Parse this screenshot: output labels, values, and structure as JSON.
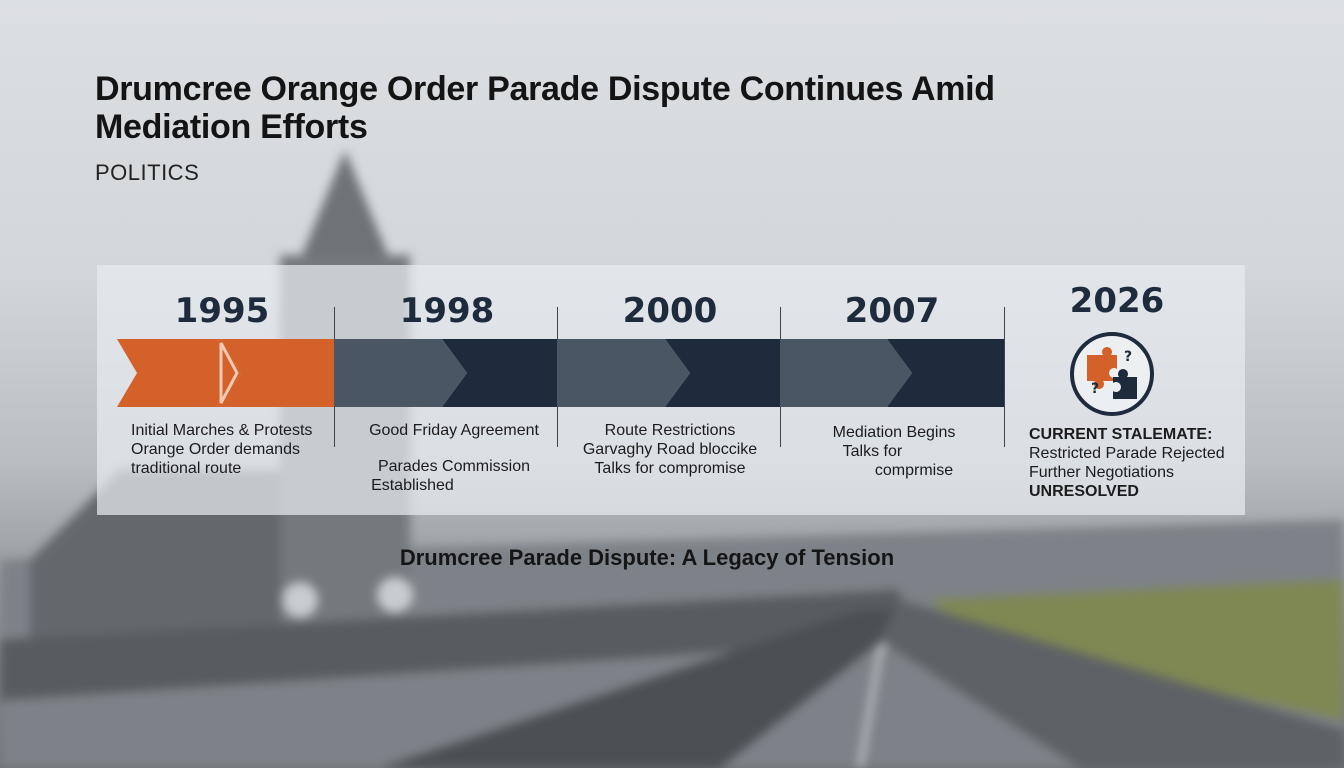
{
  "headline": "Drumcree Orange Order Parade Dispute Continues Amid Mediation Efforts",
  "category": "POLITICS",
  "timeline": [
    {
      "year": "1995",
      "lines": [
        "Initial Marches & Protests",
        "Orange Order demands",
        "traditional route"
      ]
    },
    {
      "year": "1998",
      "lines": [
        "Good Friday Agreement",
        "",
        "Parades Commission",
        "Established"
      ]
    },
    {
      "year": "2000",
      "lines": [
        "Route Restrictions",
        "Garvaghy Road bloccike",
        "Talks for compromise"
      ]
    },
    {
      "year": "2007",
      "lines": [
        "Mediation Begins",
        "Talks for",
        "comprmise"
      ]
    },
    {
      "year": "2026",
      "lines": [
        "CURRENT STALEMATE:",
        "Restricted Parade Rejected",
        "Further Negotiations",
        "UNRESOLVED"
      ]
    }
  ],
  "caption": "Drumcree Parade Dispute: A Legacy of Tension",
  "colors": {
    "orange": "#d4612a",
    "slate": "#4a5663",
    "navy": "#1d2b3d"
  },
  "icons": {
    "status": "puzzle-icon"
  }
}
